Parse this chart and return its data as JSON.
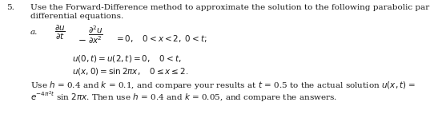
{
  "number": "5.",
  "main_line1": "Use the Forward-Difference method to approximate the solution to the following parabolic partial",
  "main_line2": "differential equations.",
  "label_a": "a.",
  "bc_text": "$u(0, t) = u(2, t) = 0, \\quad 0 < t,$",
  "ic_text": "$u(x, 0) = \\sin 2\\pi x, \\quad 0 \\leq x \\leq 2.$",
  "footer1": "Use $h$ = 0.4 and $k$ = 0.1, and compare your results at $t$ = 0.5 to the actual solution $u(x, t)$ =",
  "footer2": "$e^{-4\\pi^2 t}$ sin $2\\pi x$. Then use $h$ = 0.4 and $k$ = 0.05, and compare the answers.",
  "background_color": "#ffffff",
  "text_color": "#1a1a1a",
  "fs": 7.5
}
